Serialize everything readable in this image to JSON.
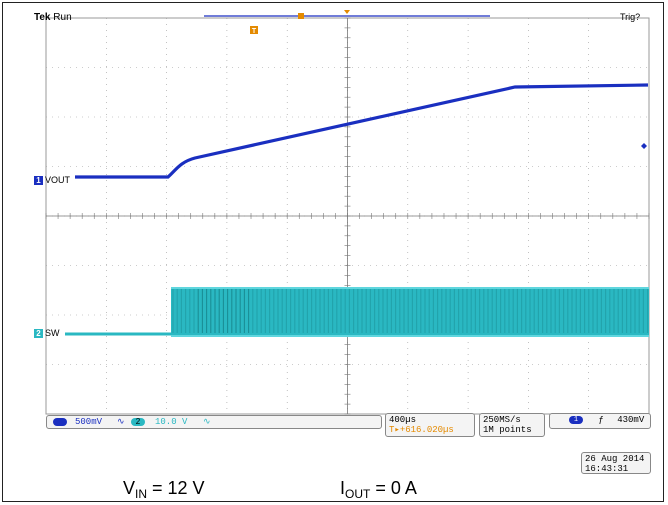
{
  "header": {
    "brand": "Tek",
    "mode": "Run",
    "trigger_status": "Trig?"
  },
  "channels": [
    {
      "number": "1",
      "name": "VOUT",
      "color": "#1a2fc0"
    },
    {
      "number": "2",
      "name": "SW",
      "color": "#2ab8c2"
    }
  ],
  "status_bar": {
    "ch1_scale": "500mV",
    "ch1_coupling": "∿",
    "ch2_number": "2",
    "ch2_scale": "10.0 V",
    "ch2_coupling": "∿",
    "timebase": "400µs",
    "trigger_position": "T▸+616.020µs",
    "sample_rate": "250MS/s",
    "record_length": "1M points",
    "trigger_source": "1",
    "trigger_slope": "ƒ",
    "trigger_level": "430mV",
    "date": "26 Aug 2014",
    "time": "16:43:31"
  },
  "captions": {
    "vin_label": "V",
    "vin_sub": "IN",
    "vin_value": " = 12 V",
    "iout_label": "I",
    "iout_sub": "OUT",
    "iout_value": " = 0 A"
  },
  "colors": {
    "ch1": "#1a2fc0",
    "ch2": "#2ab8c2",
    "trigger": "#e48a00",
    "grid": "#9a9a9a"
  }
}
